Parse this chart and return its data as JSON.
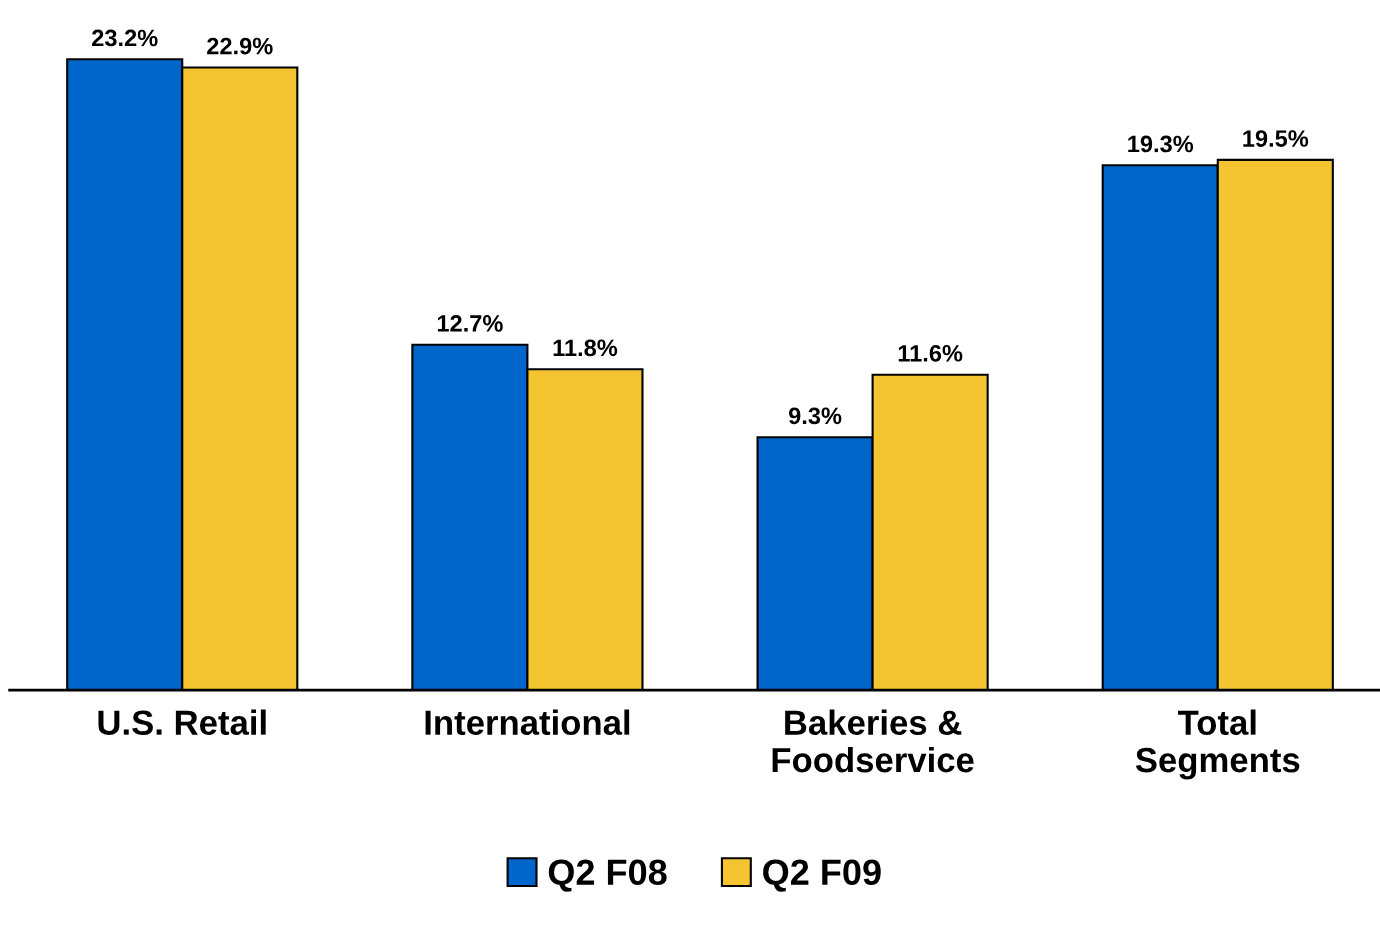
{
  "chart_data": {
    "type": "bar",
    "categories": [
      "U.S. Retail",
      "International",
      "Bakeries &\nFoodservice",
      "Total\nSegments"
    ],
    "series": [
      {
        "name": "Q2 F08",
        "color": "#0066cc",
        "values": [
          23.2,
          12.7,
          9.3,
          19.3
        ],
        "value_labels": [
          "23.2%",
          "12.7%",
          "9.3%",
          "19.3%"
        ]
      },
      {
        "name": "Q2 F09",
        "color": "#f5c531",
        "values": [
          22.9,
          11.8,
          11.6,
          19.5
        ],
        "value_labels": [
          "22.9%",
          "11.8%",
          "11.6%",
          "19.5%"
        ]
      }
    ],
    "legend": "bottom",
    "grid": false
  }
}
